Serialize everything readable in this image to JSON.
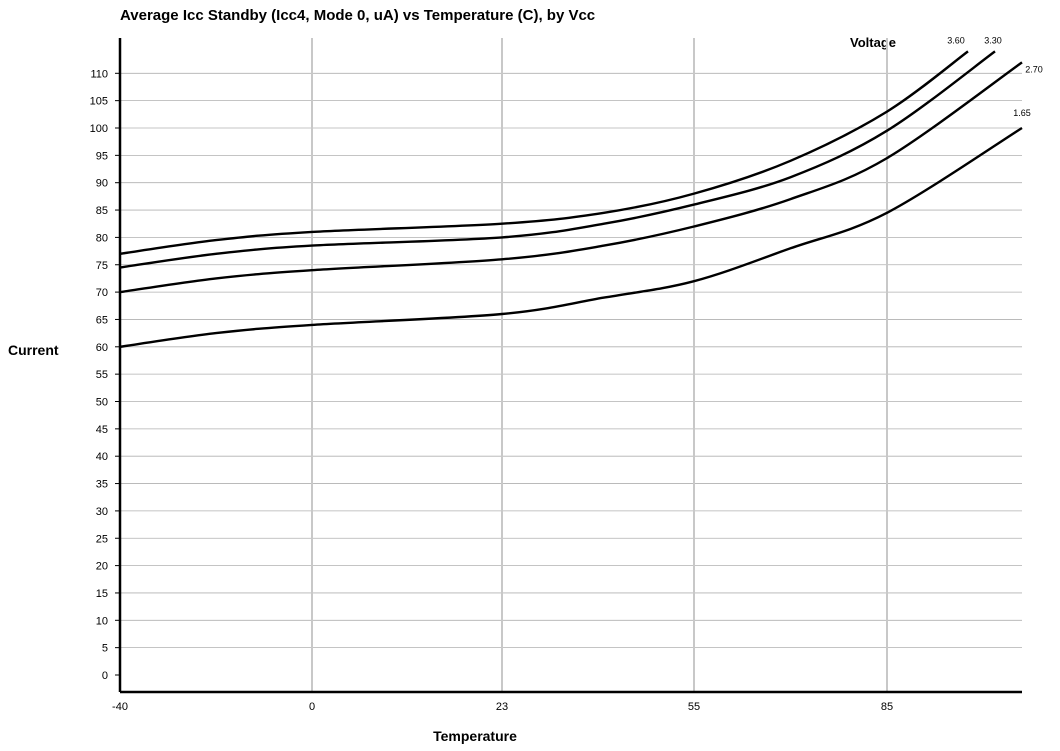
{
  "chart_data": {
    "type": "line",
    "title": "Average Icc Standby (Icc4, Mode 0, uA) vs Temperature (C), by Vcc",
    "xlabel": "Temperature",
    "ylabel": "Current",
    "legend_title": "Voltage",
    "legend_position": "top-right",
    "x_categories": [
      "-40",
      "0",
      "23",
      "55",
      "85"
    ],
    "y_ticks": [
      "0",
      "5",
      "10",
      "15",
      "20",
      "25",
      "30",
      "35",
      "40",
      "45",
      "50",
      "55",
      "60",
      "65",
      "70",
      "75",
      "80",
      "85",
      "90",
      "95",
      "100",
      "105",
      "110"
    ],
    "ylim": [
      0,
      112
    ],
    "grid": true,
    "series": [
      {
        "name": "3.60",
        "x": [
          -40,
          -20,
          0,
          23,
          40,
          55,
          70,
          85,
          100
        ],
        "y": [
          77,
          79.5,
          81,
          82.5,
          84.5,
          88,
          94,
          103,
          114
        ]
      },
      {
        "name": "3.30",
        "x": [
          -40,
          -20,
          0,
          23,
          40,
          55,
          70,
          85,
          105
        ],
        "y": [
          74.5,
          77,
          78.5,
          80,
          82.5,
          86,
          91,
          99.5,
          114
        ]
      },
      {
        "name": "2.70",
        "x": [
          -40,
          -20,
          0,
          23,
          40,
          55,
          70,
          85,
          110
        ],
        "y": [
          70,
          72.5,
          74,
          76,
          78.5,
          82,
          87,
          94.5,
          112
        ]
      },
      {
        "name": "1.65",
        "x": [
          -40,
          -20,
          0,
          23,
          40,
          55,
          70,
          85,
          110
        ],
        "y": [
          60,
          62.5,
          64,
          66,
          69,
          72,
          78,
          84.5,
          100
        ]
      }
    ]
  }
}
